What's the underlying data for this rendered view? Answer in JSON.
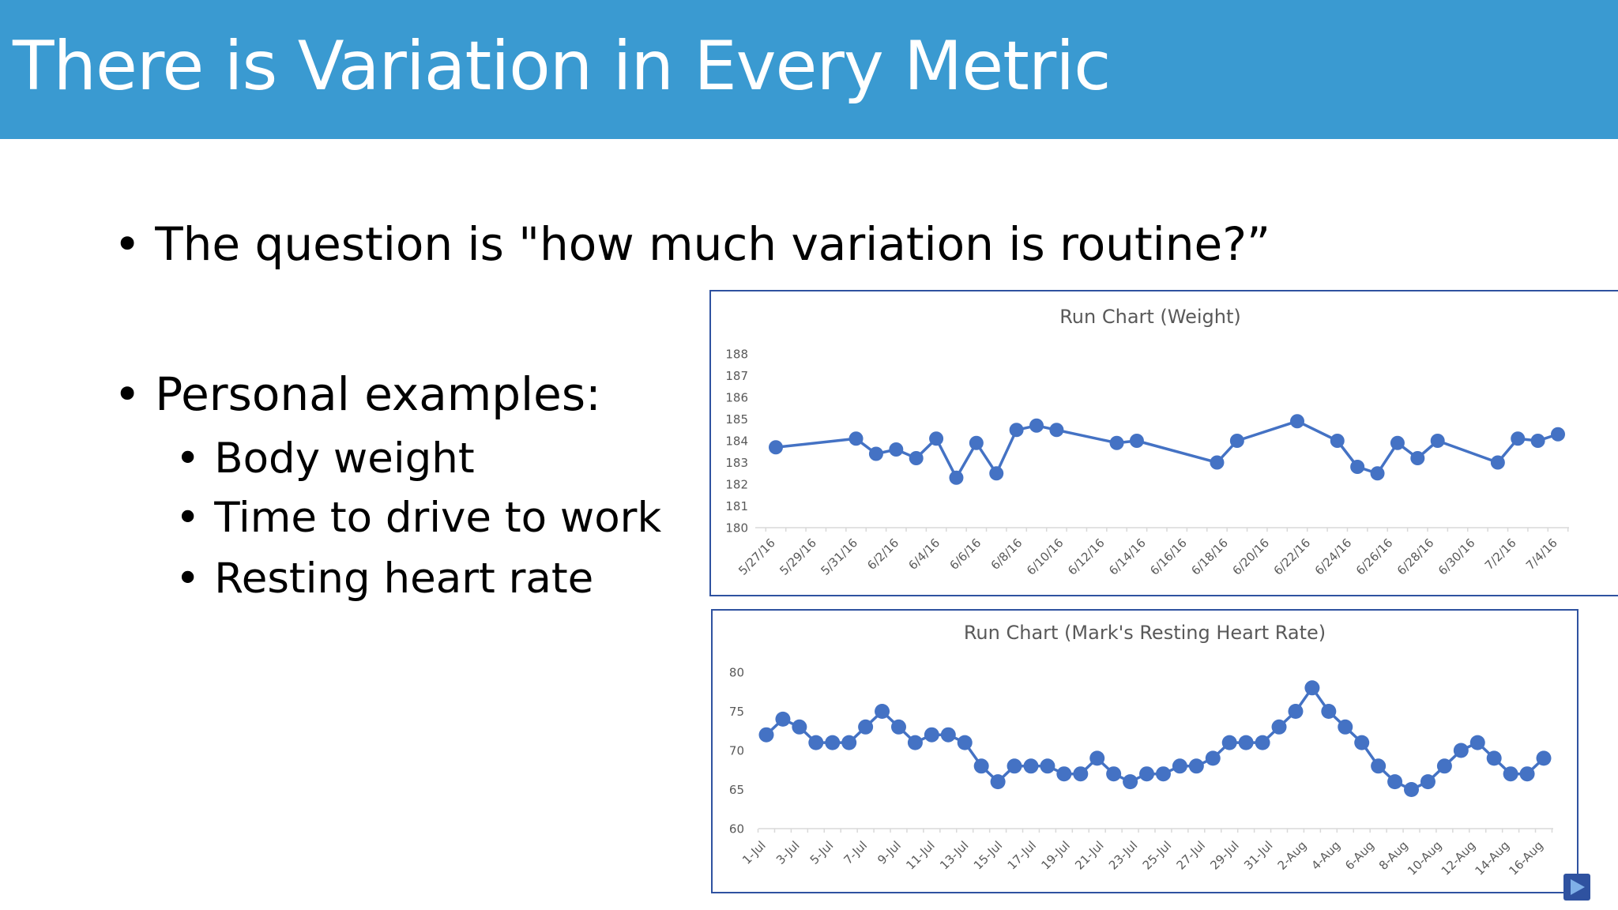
{
  "slide": {
    "title": "There is Variation in Every Metric",
    "bullets": [
      "The question is \"how much variation is routine?”",
      "Personal examples:"
    ],
    "sub_bullets": [
      "Body weight",
      "Time to drive to work",
      "Resting heart rate"
    ],
    "bullet_char": "•"
  },
  "colors": {
    "title_bar": "#3a9ad1",
    "series": "#4472c4",
    "chart_border": "#2f52a0"
  },
  "icons": {
    "play_button": "play-icon"
  },
  "chart_data": [
    {
      "type": "line",
      "title": "Run Chart (Weight)",
      "xlabel": "",
      "ylabel": "",
      "ylim": [
        180,
        188
      ],
      "yticks": [
        180,
        181,
        182,
        183,
        184,
        185,
        186,
        187,
        188
      ],
      "x_labels": [
        "5/27/16",
        "5/29/16",
        "5/31/16",
        "6/2/16",
        "6/4/16",
        "6/6/16",
        "6/8/16",
        "6/10/16",
        "6/12/16",
        "6/14/16",
        "6/16/16",
        "6/18/16",
        "6/20/16",
        "6/22/16",
        "6/24/16",
        "6/26/16",
        "6/28/16",
        "6/30/16",
        "7/2/16",
        "7/4/16"
      ],
      "x_range": [
        0,
        39
      ],
      "grid": false,
      "legend": "none",
      "series": [
        {
          "x": [
            0,
            4,
            5,
            6,
            7,
            8,
            9,
            10,
            11,
            12,
            13,
            14,
            17,
            18,
            22,
            23,
            26,
            28,
            29,
            30,
            31,
            32,
            33,
            36,
            37,
            38,
            39
          ],
          "values": [
            183.7,
            184.1,
            183.4,
            183.6,
            183.2,
            184.1,
            182.3,
            183.9,
            182.5,
            184.5,
            184.7,
            184.5,
            183.9,
            184.0,
            183.0,
            184.0,
            184.9,
            184.0,
            182.8,
            182.5,
            183.9,
            183.2,
            184.0,
            183.0,
            184.1,
            184.0,
            184.3
          ]
        }
      ]
    },
    {
      "type": "line",
      "title": "Run  Chart (Mark's Resting Heart Rate)",
      "xlabel": "",
      "ylabel": "",
      "ylim": [
        60,
        80
      ],
      "yticks": [
        60,
        65,
        70,
        75,
        80
      ],
      "x_labels": [
        "1-Jul",
        "3-Jul",
        "5-Jul",
        "7-Jul",
        "9-Jul",
        "11-Jul",
        "13-Jul",
        "15-Jul",
        "17-Jul",
        "19-Jul",
        "21-Jul",
        "23-Jul",
        "25-Jul",
        "27-Jul",
        "29-Jul",
        "31-Jul",
        "2-Aug",
        "4-Aug",
        "6-Aug",
        "8-Aug",
        "10-Aug",
        "12-Aug",
        "14-Aug",
        "16-Aug"
      ],
      "grid": false,
      "legend": "none",
      "series": [
        {
          "values": [
            72,
            74,
            73,
            71,
            71,
            71,
            73,
            75,
            73,
            71,
            72,
            72,
            71,
            68,
            66,
            68,
            68,
            68,
            67,
            67,
            69,
            67,
            66,
            67,
            67,
            68,
            68,
            69,
            71,
            71,
            71,
            73,
            75,
            78,
            75,
            73,
            71,
            68,
            66,
            65,
            66,
            68,
            70,
            71,
            69,
            67,
            67,
            69
          ]
        }
      ]
    }
  ]
}
